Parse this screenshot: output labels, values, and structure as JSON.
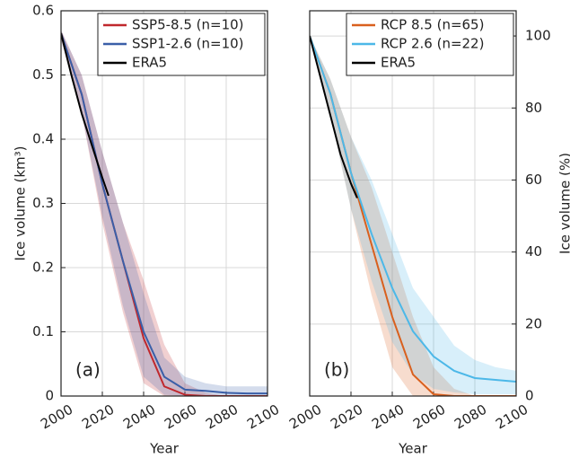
{
  "chart_data": [
    {
      "type": "line",
      "annotation": "(a)",
      "xlabel": "Year",
      "ylabel": "Ice volume (km³)",
      "y_side": "left",
      "grid": true,
      "legend": "upper right",
      "x": [
        2000,
        2010,
        2020,
        2030,
        2040,
        2050,
        2060,
        2070,
        2080,
        2090,
        2100
      ],
      "xlim": [
        2000,
        2100
      ],
      "xticks": [
        2000,
        2020,
        2040,
        2060,
        2080,
        2100
      ],
      "ylim": [
        0,
        0.6
      ],
      "yticks": [
        0,
        0.1,
        0.2,
        0.3,
        0.4,
        0.5,
        0.6
      ],
      "series": [
        {
          "name": "SSP5-8.5 (n=10)",
          "color": "#c0282d",
          "values": [
            0.565,
            0.47,
            0.33,
            0.21,
            0.09,
            0.015,
            0.002,
            0,
            0,
            0,
            0
          ],
          "upper": [
            0.57,
            0.5,
            0.38,
            0.27,
            0.18,
            0.08,
            0.02,
            0.005,
            0,
            0,
            0
          ],
          "lower": [
            0.555,
            0.44,
            0.27,
            0.13,
            0.02,
            0,
            0,
            0,
            0,
            0,
            0
          ]
        },
        {
          "name": "SSP1-2.6 (n=10)",
          "color": "#3a5fa8",
          "values": [
            0.565,
            0.47,
            0.33,
            0.21,
            0.1,
            0.03,
            0.01,
            0.008,
            0.005,
            0.004,
            0.004
          ],
          "upper": [
            0.57,
            0.5,
            0.38,
            0.27,
            0.16,
            0.06,
            0.03,
            0.02,
            0.015,
            0.015,
            0.015
          ],
          "lower": [
            0.555,
            0.44,
            0.28,
            0.14,
            0.03,
            0.002,
            0,
            0,
            0,
            0,
            0
          ]
        },
        {
          "name": "ERA5",
          "color": "#000000",
          "x": [
            2000,
            2005,
            2010,
            2015,
            2020,
            2023
          ],
          "values": [
            0.565,
            0.5,
            0.44,
            0.39,
            0.34,
            0.312
          ]
        }
      ]
    },
    {
      "type": "line",
      "annotation": "(b)",
      "xlabel": "Year",
      "ylabel": "Ice volume (%)",
      "y_side": "right",
      "grid": true,
      "legend": "upper right",
      "x": [
        2000,
        2010,
        2020,
        2030,
        2040,
        2050,
        2060,
        2070,
        2080,
        2090,
        2100
      ],
      "xlim": [
        2000,
        2100
      ],
      "xticks": [
        2000,
        2020,
        2040,
        2060,
        2080,
        2100
      ],
      "ylim": [
        0,
        107
      ],
      "yticks": [
        0,
        20,
        40,
        60,
        80,
        100
      ],
      "series": [
        {
          "name": "RCP 8.5 (n=65)",
          "color": "#d9601e",
          "values": [
            100,
            84,
            62,
            42,
            22,
            6,
            0.5,
            0,
            0,
            0,
            0
          ],
          "upper": [
            100,
            88,
            72,
            58,
            40,
            22,
            8,
            2,
            0,
            0,
            0
          ],
          "lower": [
            100,
            78,
            52,
            28,
            8,
            0,
            0,
            0,
            0,
            0,
            0
          ]
        },
        {
          "name": "RCP 2.6 (n=22)",
          "color": "#4cb8e8",
          "values": [
            100,
            84,
            62,
            45,
            30,
            18,
            11,
            7,
            5,
            4.5,
            4
          ],
          "upper": [
            100,
            88,
            72,
            60,
            45,
            30,
            22,
            14,
            10,
            8,
            7
          ],
          "lower": [
            100,
            78,
            52,
            32,
            15,
            6,
            2,
            1,
            0.5,
            0.5,
            0.5
          ]
        },
        {
          "name": "ERA5",
          "color": "#000000",
          "x": [
            2000,
            2005,
            2010,
            2015,
            2020,
            2023
          ],
          "values": [
            100,
            89,
            78,
            67,
            59,
            55
          ]
        }
      ]
    }
  ]
}
